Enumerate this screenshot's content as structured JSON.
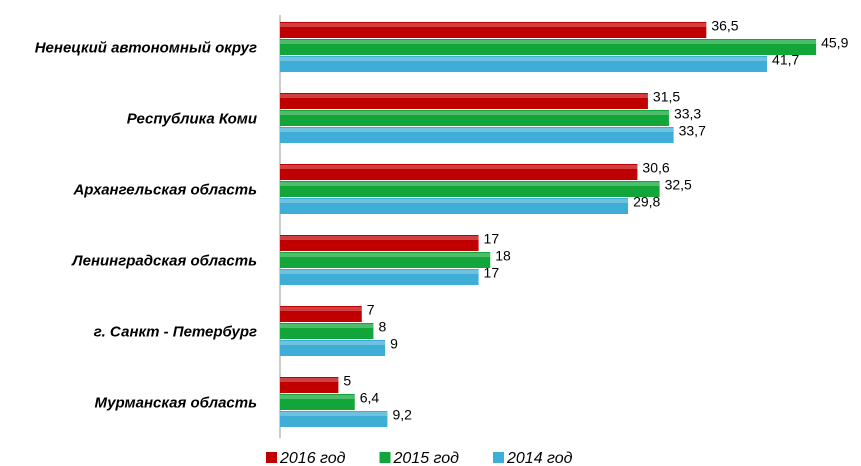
{
  "chart_data": {
    "type": "bar",
    "orientation": "horizontal",
    "categories": [
      "Ненецкий автономный округ",
      "Республика Коми",
      "Архангельская область",
      "Ленинградская область",
      "г. Санкт - Петербург",
      "Мурманская область"
    ],
    "series": [
      {
        "name": "2016 год",
        "color": "#c00000",
        "values": [
          36.5,
          31.5,
          30.6,
          17,
          7,
          5
        ],
        "value_labels": [
          "36,5",
          "31,5",
          "30,6",
          "17",
          "7",
          "5"
        ]
      },
      {
        "name": "2015 год",
        "color": "#12a63a",
        "values": [
          45.9,
          33.3,
          32.5,
          18,
          8,
          6.4
        ],
        "value_labels": [
          "45,9",
          "33,3",
          "32,5",
          "18",
          "8",
          "6,4"
        ]
      },
      {
        "name": "2014 год",
        "color": "#3eaed6",
        "values": [
          41.7,
          33.7,
          29.8,
          17,
          9,
          9.2
        ],
        "value_labels": [
          "41,7",
          "33,7",
          "29,8",
          "17",
          "9",
          "9,2"
        ]
      }
    ],
    "xlim": [
      0,
      50
    ],
    "legend": "bottom"
  }
}
